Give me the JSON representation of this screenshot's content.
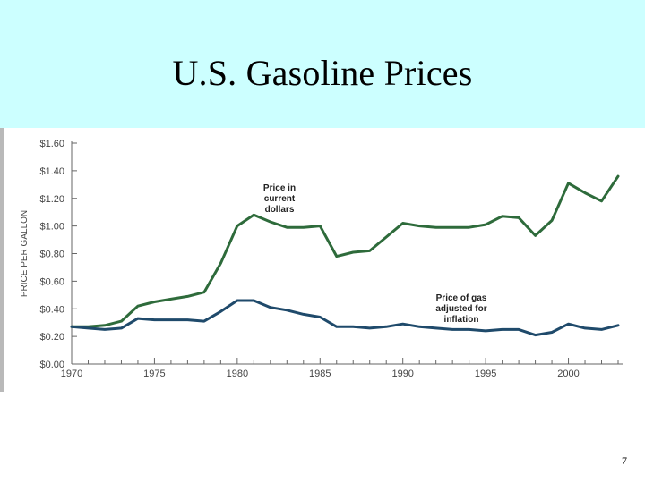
{
  "slide": {
    "title": "U.S. Gasoline Prices",
    "page_number": "7"
  },
  "colors": {
    "title_band": "#ccffff",
    "current_series": "#2e6b3b",
    "inflation_series": "#1f4a6b",
    "axis": "#666666"
  },
  "chart_data": {
    "type": "line",
    "title": "",
    "xlabel": "",
    "ylabel": "PRICE PER GALLON",
    "xlim": [
      1970,
      2003
    ],
    "ylim": [
      0,
      1.6
    ],
    "grid": false,
    "x_ticks": [
      1970,
      1975,
      1980,
      1985,
      1990,
      1995,
      2000
    ],
    "x_tick_labels": [
      "1970",
      "1975",
      "1980",
      "1985",
      "1990",
      "1995",
      "2000"
    ],
    "y_ticks": [
      0,
      0.2,
      0.4,
      0.6,
      0.8,
      1.0,
      1.2,
      1.4,
      1.6
    ],
    "y_tick_labels": [
      "$0.00",
      "$0.20",
      "$0.40",
      "$0.60",
      "$0.80",
      "$1.00",
      "$1.20",
      "$1.40",
      "$1.60"
    ],
    "x": [
      1970,
      1971,
      1972,
      1973,
      1974,
      1975,
      1976,
      1977,
      1978,
      1979,
      1980,
      1981,
      1982,
      1983,
      1984,
      1985,
      1986,
      1987,
      1988,
      1989,
      1990,
      1991,
      1992,
      1993,
      1994,
      1995,
      1996,
      1997,
      1998,
      1999,
      2000,
      2001,
      2002,
      2003
    ],
    "series": [
      {
        "key": "current",
        "values": [
          0.27,
          0.27,
          0.28,
          0.31,
          0.42,
          0.45,
          0.47,
          0.49,
          0.52,
          0.73,
          1.0,
          1.08,
          1.03,
          0.99,
          0.99,
          1.0,
          0.78,
          0.81,
          0.82,
          0.92,
          1.02,
          1.0,
          0.99,
          0.99,
          0.99,
          1.01,
          1.07,
          1.06,
          0.93,
          1.04,
          1.31,
          1.24,
          1.18,
          1.36
        ],
        "annotation": [
          "Price in",
          "current",
          "dollars"
        ]
      },
      {
        "key": "inflation",
        "values": [
          0.27,
          0.26,
          0.25,
          0.26,
          0.33,
          0.32,
          0.32,
          0.32,
          0.31,
          0.38,
          0.46,
          0.46,
          0.41,
          0.39,
          0.36,
          0.34,
          0.27,
          0.27,
          0.26,
          0.27,
          0.29,
          0.27,
          0.26,
          0.25,
          0.25,
          0.24,
          0.25,
          0.25,
          0.21,
          0.23,
          0.29,
          0.26,
          0.25,
          0.28
        ],
        "annotation": [
          "Price of gas",
          "adjusted for",
          "inflation"
        ]
      }
    ]
  }
}
